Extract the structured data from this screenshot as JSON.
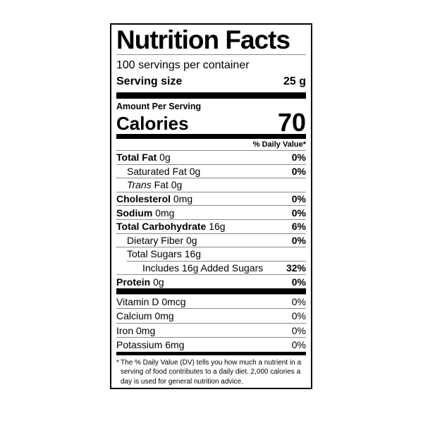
{
  "colors": {
    "text": "#000000",
    "hairline": "#8a8a8a",
    "bar": "#000000",
    "background": "#ffffff"
  },
  "label": {
    "title": "Nutrition Facts",
    "servings_per_container": "100 servings per container",
    "serving_size_label": "Serving size",
    "serving_size_value": "25 g",
    "amount_per_serving": "Amount Per Serving",
    "calories_label": "Calories",
    "calories_value": "70",
    "daily_value_header": "% Daily Value*",
    "nutrients": [
      {
        "bold": "Total Fat",
        "italic": "",
        "rest": " 0g",
        "dv": "0%"
      },
      {
        "bold": "",
        "italic": "",
        "rest": "Saturated Fat 0g",
        "dv": "0%"
      },
      {
        "bold": "",
        "italic": "Trans",
        "rest": " Fat 0g",
        "dv": ""
      },
      {
        "bold": "Cholesterol",
        "italic": "",
        "rest": " 0mg",
        "dv": "0%"
      },
      {
        "bold": "Sodium",
        "italic": "",
        "rest": " 0mg",
        "dv": "0%"
      },
      {
        "bold": "Total Carbohydrate",
        "italic": "",
        "rest": " 16g",
        "dv": "6%"
      },
      {
        "bold": "",
        "italic": "",
        "rest": "Dietary Fiber 0g",
        "dv": "0%"
      },
      {
        "bold": "",
        "italic": "",
        "rest": "Total Sugars 16g",
        "dv": ""
      },
      {
        "bold": "",
        "italic": "",
        "rest": "Includes 16g Added Sugars",
        "dv": "32%"
      },
      {
        "bold": "Protein",
        "italic": "",
        "rest": " 0g",
        "dv": "0%"
      }
    ],
    "micronutrients": [
      {
        "text": "Vitamin D 0mcg",
        "dv": "0%"
      },
      {
        "text": "Calcium 0mg",
        "dv": "0%"
      },
      {
        "text": "Iron 0mg",
        "dv": "0%"
      },
      {
        "text": "Potassium 6mg",
        "dv": "0%"
      }
    ],
    "footnote_marker": "*",
    "footnote_lines": [
      "The % Daily Value (DV) tells you how much a nutrient in a",
      "serving of food contributes to a daily diet. 2,000 calories a",
      "day is used for general nutrition advice."
    ]
  }
}
